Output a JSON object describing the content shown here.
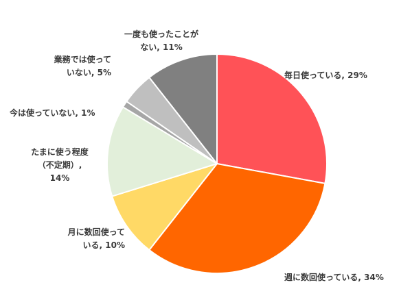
{
  "chart_data": {
    "type": "pie",
    "slices": [
      {
        "label": "毎日使っている",
        "value": 29,
        "color": "#FF5257"
      },
      {
        "label": "週に数回使っている",
        "value": 34,
        "color": "#FF6600"
      },
      {
        "label": "月に数回使っている",
        "value": 10,
        "color": "#FFD966"
      },
      {
        "label": "たまに使う程度（不定期）",
        "value": 14,
        "color": "#E2EFDA"
      },
      {
        "label": "今は使っていない",
        "value": 1,
        "color": "#A6A6A6"
      },
      {
        "label": "業務では使っていない",
        "value": 5,
        "color": "#BFBFBF"
      },
      {
        "label": "一度も使ったことがない",
        "value": 11,
        "color": "#808080"
      }
    ],
    "labels": [
      {
        "lines": [
          "毎日使っている, 29%"
        ]
      },
      {
        "lines": [
          "週に数回使っている, 34%"
        ]
      },
      {
        "lines": [
          "月に数回使って",
          "いる, 10%"
        ]
      },
      {
        "lines": [
          "たまに使う程度",
          "（不定期）,",
          "14%"
        ]
      },
      {
        "lines": [
          "今は使っていない, 1%"
        ]
      },
      {
        "lines": [
          "業務では使って",
          "いない, 5%"
        ]
      },
      {
        "lines": [
          "一度も使ったことが",
          "ない, 11%"
        ]
      }
    ],
    "start_angle_deg": 0,
    "direction": "clockwise",
    "legend": "none"
  }
}
